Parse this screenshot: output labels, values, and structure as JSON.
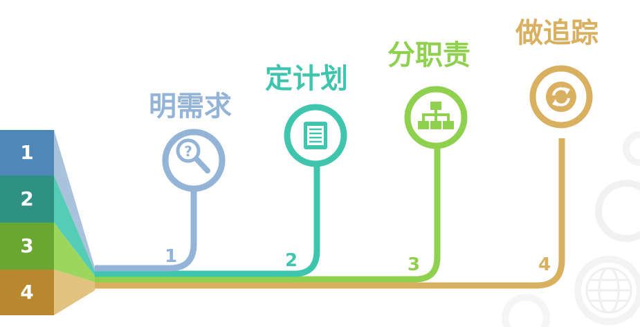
{
  "colors": {
    "step1": "#93b4d6",
    "step2": "#3fc4ad",
    "step3": "#8fd14f",
    "step4": "#d8b060",
    "block1": "#4f87b8",
    "block2": "#2e9184",
    "block3": "#6aa632",
    "block4": "#b8872e"
  },
  "steps": [
    {
      "label": "明需求",
      "number": "1",
      "icon": "search-question-icon"
    },
    {
      "label": "定计划",
      "number": "2",
      "icon": "document-list-icon"
    },
    {
      "label": "分职责",
      "number": "3",
      "icon": "org-chart-icon"
    },
    {
      "label": "做追踪",
      "number": "4",
      "icon": "refresh-cycle-icon"
    }
  ],
  "blocks": [
    "1",
    "2",
    "3",
    "4"
  ]
}
